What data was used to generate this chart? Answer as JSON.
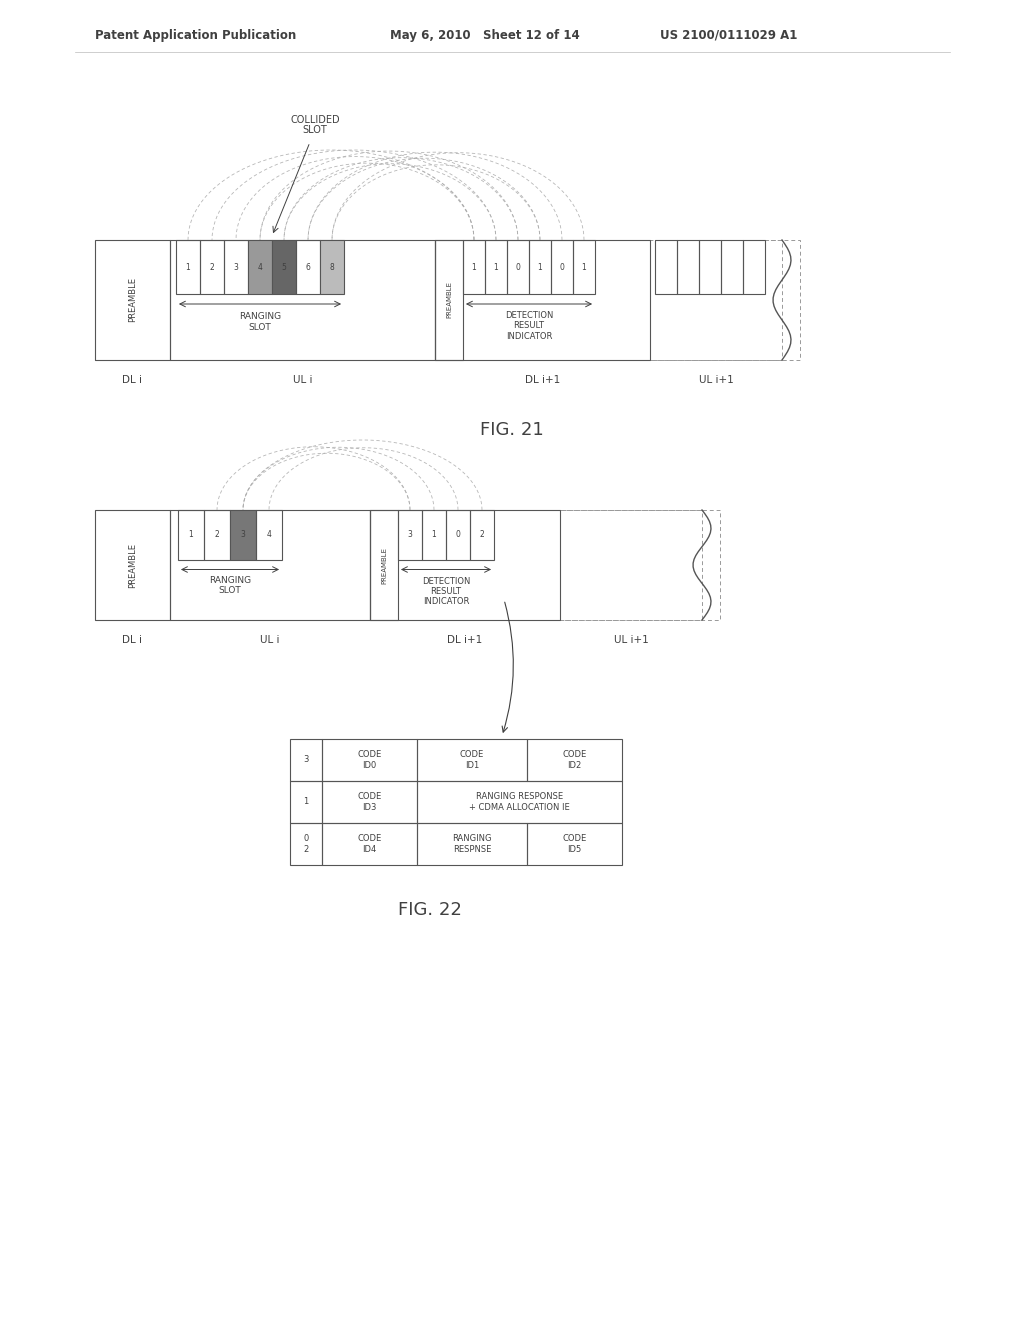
{
  "header_left": "Patent Application Publication",
  "header_mid": "May 6, 2010   Sheet 12 of 14",
  "header_right": "US 2100/0111029 A1",
  "fig21_label": "FIG. 21",
  "fig22_label": "FIG. 22",
  "bg_color": "#ffffff",
  "text_color": "#404040",
  "line_color": "#555555",
  "dashed_color": "#999999",
  "gray_med": "#777777",
  "gray_dark": "#444444"
}
